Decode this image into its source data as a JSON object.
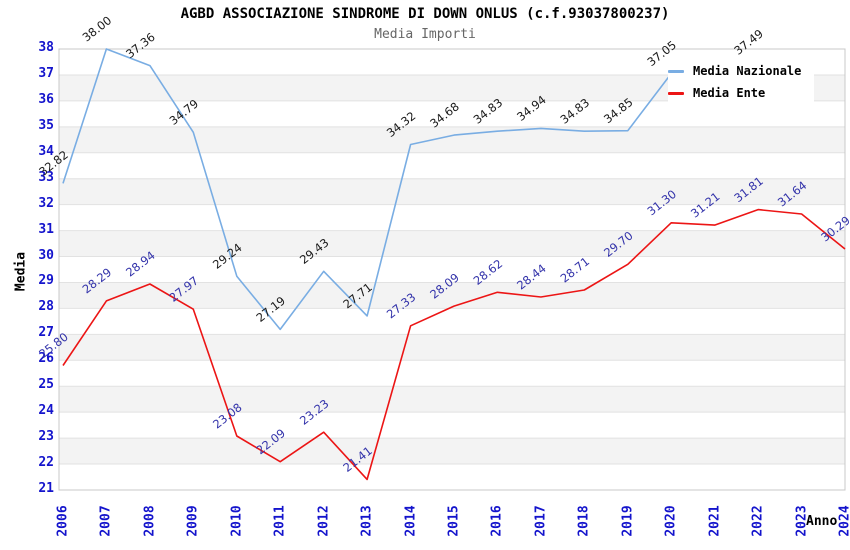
{
  "chart_data": {
    "type": "line",
    "title": "AGBD ASSOCIAZIONE SINDROME DI DOWN ONLUS (c.f.93037800237)",
    "subtitle": "Media Importi",
    "xlabel": "Anno",
    "ylabel": "Media",
    "ylim": [
      21,
      38
    ],
    "y_ticks": [
      21,
      22,
      23,
      24,
      25,
      26,
      27,
      28,
      29,
      30,
      31,
      32,
      33,
      34,
      35,
      36,
      37,
      38
    ],
    "categories": [
      "2006",
      "2007",
      "2008",
      "2009",
      "2010",
      "2011",
      "2012",
      "2013",
      "2014",
      "2015",
      "2016",
      "2017",
      "2018",
      "2019",
      "2020",
      "2021",
      "2022",
      "2023",
      "2024"
    ],
    "grid": true,
    "legend_position": "top-right",
    "series": [
      {
        "name": "Media Nazionale",
        "color": "#79ADE3",
        "label_color": "#1A1A1A",
        "values": [
          32.82,
          38.0,
          37.36,
          34.79,
          29.24,
          27.19,
          29.43,
          27.71,
          34.32,
          34.68,
          34.83,
          34.94,
          34.83,
          34.85,
          37.05,
          null,
          37.49,
          null,
          null
        ]
      },
      {
        "name": "Media Ente",
        "color": "#EC1515",
        "label_color": "#3333AA",
        "values": [
          25.8,
          28.29,
          28.94,
          27.97,
          23.08,
          22.09,
          23.23,
          21.41,
          27.33,
          28.09,
          28.62,
          28.44,
          28.71,
          29.7,
          31.3,
          31.21,
          31.81,
          31.64,
          30.29
        ]
      }
    ],
    "styles": {
      "band_fill": "#F3F3F3",
      "grid_color": "#E2E2E2",
      "border_color": "#C8C8C8",
      "tick_label_color": "#1414CC",
      "plot_bg": "#FFFFFF"
    }
  }
}
